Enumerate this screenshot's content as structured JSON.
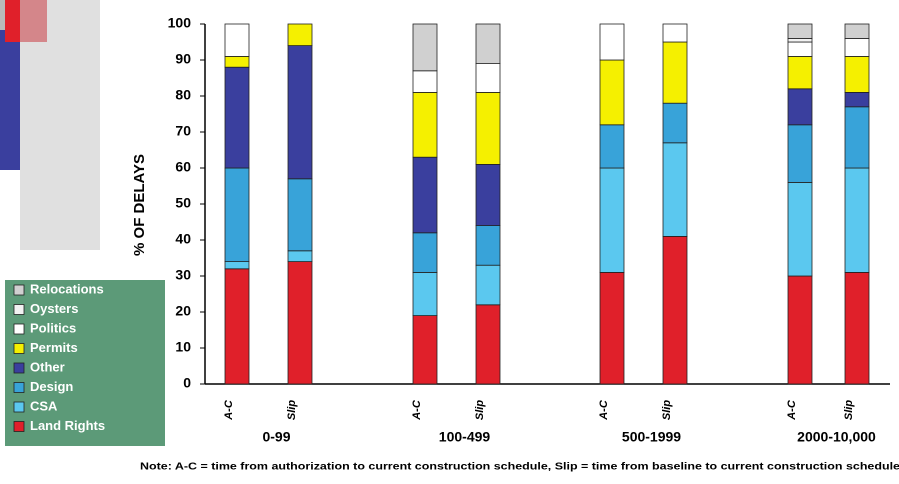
{
  "chart_data": {
    "type": "stacked_bar",
    "y_label": "% OF DELAYS",
    "ylim": [
      0,
      100
    ],
    "yticks": [
      0,
      10,
      20,
      30,
      40,
      50,
      60,
      70,
      80,
      90,
      100
    ],
    "categories": [
      "A-C",
      "Slip",
      "A-C",
      "Slip",
      "A-C",
      "Slip",
      "A-C",
      "Slip"
    ],
    "groups": [
      "0-99",
      "100-499",
      "500-1999",
      "2000-10,000"
    ],
    "note": "Note: A-C = time from authorization to current construction schedule, Slip = time from baseline to current construction schedule",
    "series": [
      {
        "name": "Land Rights",
        "color": "#e0202a",
        "values": [
          32,
          34,
          19,
          22,
          31,
          41,
          30,
          31
        ]
      },
      {
        "name": "CSA",
        "color": "#5bc8ef",
        "values": [
          2,
          3,
          12,
          11,
          29,
          26,
          26,
          29
        ]
      },
      {
        "name": "Design",
        "color": "#38a3d9",
        "values": [
          26,
          20,
          11,
          11,
          12,
          11,
          16,
          17
        ]
      },
      {
        "name": "Other",
        "color": "#3a3f9e",
        "values": [
          28,
          37,
          21,
          17,
          0,
          0,
          10,
          4
        ]
      },
      {
        "name": "Permits",
        "color": "#f5f000",
        "values": [
          3,
          6,
          18,
          20,
          18,
          17,
          9,
          10
        ]
      },
      {
        "name": "Politics",
        "color": "#ffffff",
        "values": [
          9,
          0,
          6,
          8,
          10,
          5,
          4,
          5
        ]
      },
      {
        "name": "Oysters",
        "color": "#f2f2f2",
        "values": [
          0,
          0,
          0,
          0,
          0,
          0,
          1,
          0
        ]
      },
      {
        "name": "Relocations",
        "color": "#d0d0d0",
        "values": [
          0,
          0,
          13,
          11,
          0,
          0,
          4,
          4
        ]
      }
    ]
  }
}
